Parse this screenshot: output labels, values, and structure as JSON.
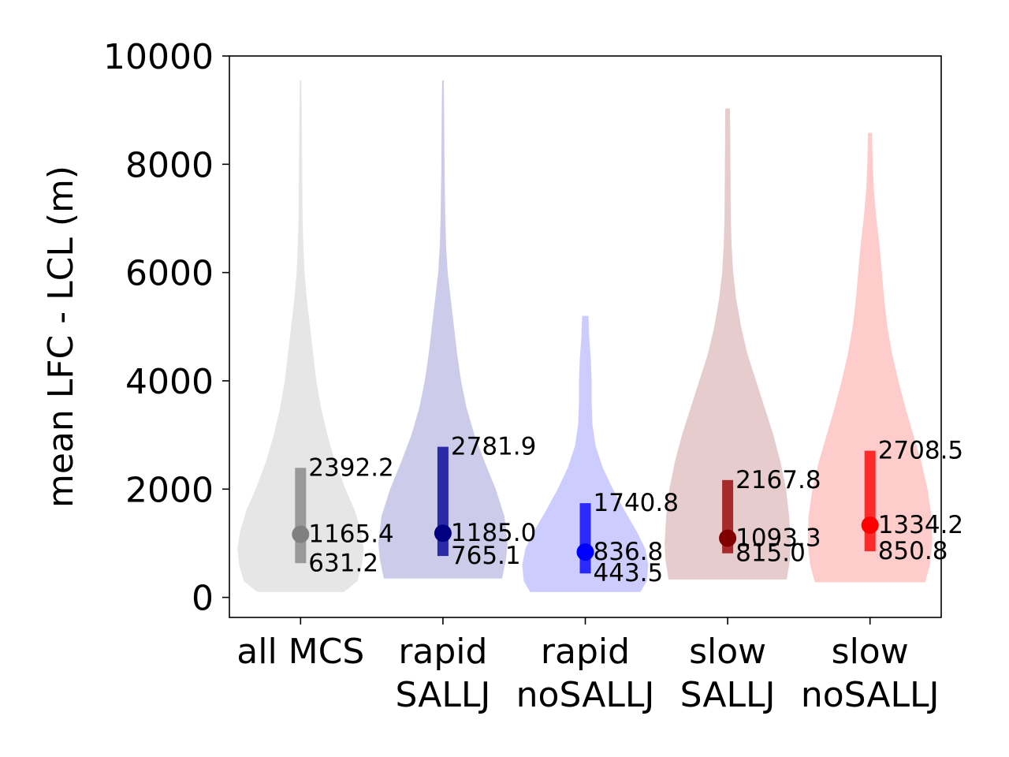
{
  "chart_data": {
    "type": "violin",
    "title": "",
    "xlabel": "",
    "ylabel": "mean LFC - LCL (m)",
    "ylim": [
      -370,
      10000
    ],
    "yticks": [
      0,
      2000,
      4000,
      6000,
      8000,
      10000
    ],
    "grid": false,
    "categories": [
      [
        "all MCS"
      ],
      [
        "rapid",
        "SALLJ"
      ],
      [
        "rapid",
        "noSALLJ"
      ],
      [
        "slow",
        "SALLJ"
      ],
      [
        "slow",
        "noSALLJ"
      ]
    ],
    "series": [
      {
        "min": 100,
        "max": 9550,
        "q1": 631.2,
        "median": 1165.4,
        "q3": 2392.2,
        "labels": {
          "q1": "631.2",
          "median": "1165.4",
          "q3": "2392.2"
        },
        "violin_color": "#e6e6e6",
        "bar_color": "#999999",
        "median_color": "#808080",
        "shape": [
          [
            100,
            0.55
          ],
          [
            300,
            0.72
          ],
          [
            600,
            0.78
          ],
          [
            900,
            0.8
          ],
          [
            1200,
            0.77
          ],
          [
            1600,
            0.69
          ],
          [
            2000,
            0.57
          ],
          [
            2500,
            0.44
          ],
          [
            3000,
            0.34
          ],
          [
            3500,
            0.26
          ],
          [
            4000,
            0.2
          ],
          [
            4500,
            0.16
          ],
          [
            5000,
            0.12
          ],
          [
            5500,
            0.08
          ],
          [
            6000,
            0.05
          ],
          [
            6500,
            0.035
          ],
          [
            7000,
            0.025
          ],
          [
            8000,
            0.02
          ],
          [
            9000,
            0.015
          ],
          [
            9550,
            0.01
          ]
        ]
      },
      {
        "min": 350,
        "max": 9550,
        "q1": 765.1,
        "median": 1185.0,
        "q3": 2781.9,
        "labels": {
          "q1": "765.1",
          "median": "1185.0",
          "q3": "2781.9"
        },
        "violin_color": "#ccccea",
        "bar_color": "#2a2aa6",
        "median_color": "#000080",
        "shape": [
          [
            350,
            0.75
          ],
          [
            700,
            0.8
          ],
          [
            1000,
            0.82
          ],
          [
            1500,
            0.78
          ],
          [
            2000,
            0.67
          ],
          [
            2500,
            0.53
          ],
          [
            3000,
            0.4
          ],
          [
            3500,
            0.3
          ],
          [
            4000,
            0.23
          ],
          [
            4500,
            0.18
          ],
          [
            5000,
            0.14
          ],
          [
            5500,
            0.1
          ],
          [
            6000,
            0.06
          ],
          [
            6500,
            0.04
          ],
          [
            7000,
            0.03
          ],
          [
            8000,
            0.02
          ],
          [
            9000,
            0.015
          ],
          [
            9550,
            0.01
          ]
        ]
      },
      {
        "min": 100,
        "max": 5200,
        "q1": 443.5,
        "median": 836.8,
        "q3": 1740.8,
        "labels": {
          "q1": "443.5",
          "median": "836.8",
          "q3": "1740.8"
        },
        "violin_color": "#ccccfe",
        "bar_color": "#2a2aff",
        "median_color": "#0000ff",
        "shape": [
          [
            100,
            0.7
          ],
          [
            300,
            0.78
          ],
          [
            600,
            0.8
          ],
          [
            900,
            0.76
          ],
          [
            1200,
            0.66
          ],
          [
            1600,
            0.5
          ],
          [
            2000,
            0.35
          ],
          [
            2400,
            0.22
          ],
          [
            2800,
            0.13
          ],
          [
            3200,
            0.09
          ],
          [
            3600,
            0.08
          ],
          [
            4000,
            0.08
          ],
          [
            4400,
            0.07
          ],
          [
            4800,
            0.05
          ],
          [
            5200,
            0.04
          ]
        ]
      },
      {
        "min": 330,
        "max": 9030,
        "q1": 815.0,
        "median": 1093.3,
        "q3": 2167.8,
        "labels": {
          "q1": "815.0",
          "median": "1093.3",
          "q3": "2167.8"
        },
        "violin_color": "#e6cccc",
        "bar_color": "#a62a2a",
        "median_color": "#800000",
        "shape": [
          [
            330,
            0.75
          ],
          [
            700,
            0.79
          ],
          [
            1000,
            0.8
          ],
          [
            1500,
            0.78
          ],
          [
            2000,
            0.74
          ],
          [
            2500,
            0.67
          ],
          [
            3000,
            0.58
          ],
          [
            3500,
            0.47
          ],
          [
            4000,
            0.36
          ],
          [
            4500,
            0.25
          ],
          [
            5000,
            0.17
          ],
          [
            5500,
            0.11
          ],
          [
            6000,
            0.07
          ],
          [
            6500,
            0.05
          ],
          [
            7000,
            0.04
          ],
          [
            8000,
            0.035
          ],
          [
            9030,
            0.03
          ]
        ]
      },
      {
        "min": 280,
        "max": 8580,
        "q1": 850.8,
        "median": 1334.2,
        "q3": 2708.5,
        "labels": {
          "q1": "850.8",
          "median": "1334.2",
          "q3": "2708.5"
        },
        "violin_color": "#ffcccc",
        "bar_color": "#ff2a2a",
        "median_color": "#ff0000",
        "shape": [
          [
            280,
            0.7
          ],
          [
            600,
            0.76
          ],
          [
            1000,
            0.79
          ],
          [
            1500,
            0.78
          ],
          [
            2000,
            0.73
          ],
          [
            2500,
            0.65
          ],
          [
            3000,
            0.55
          ],
          [
            3500,
            0.45
          ],
          [
            4000,
            0.36
          ],
          [
            4500,
            0.28
          ],
          [
            5000,
            0.22
          ],
          [
            5500,
            0.18
          ],
          [
            6000,
            0.15
          ],
          [
            6500,
            0.12
          ],
          [
            7000,
            0.08
          ],
          [
            7500,
            0.05
          ],
          [
            8000,
            0.035
          ],
          [
            8580,
            0.025
          ]
        ]
      }
    ]
  }
}
